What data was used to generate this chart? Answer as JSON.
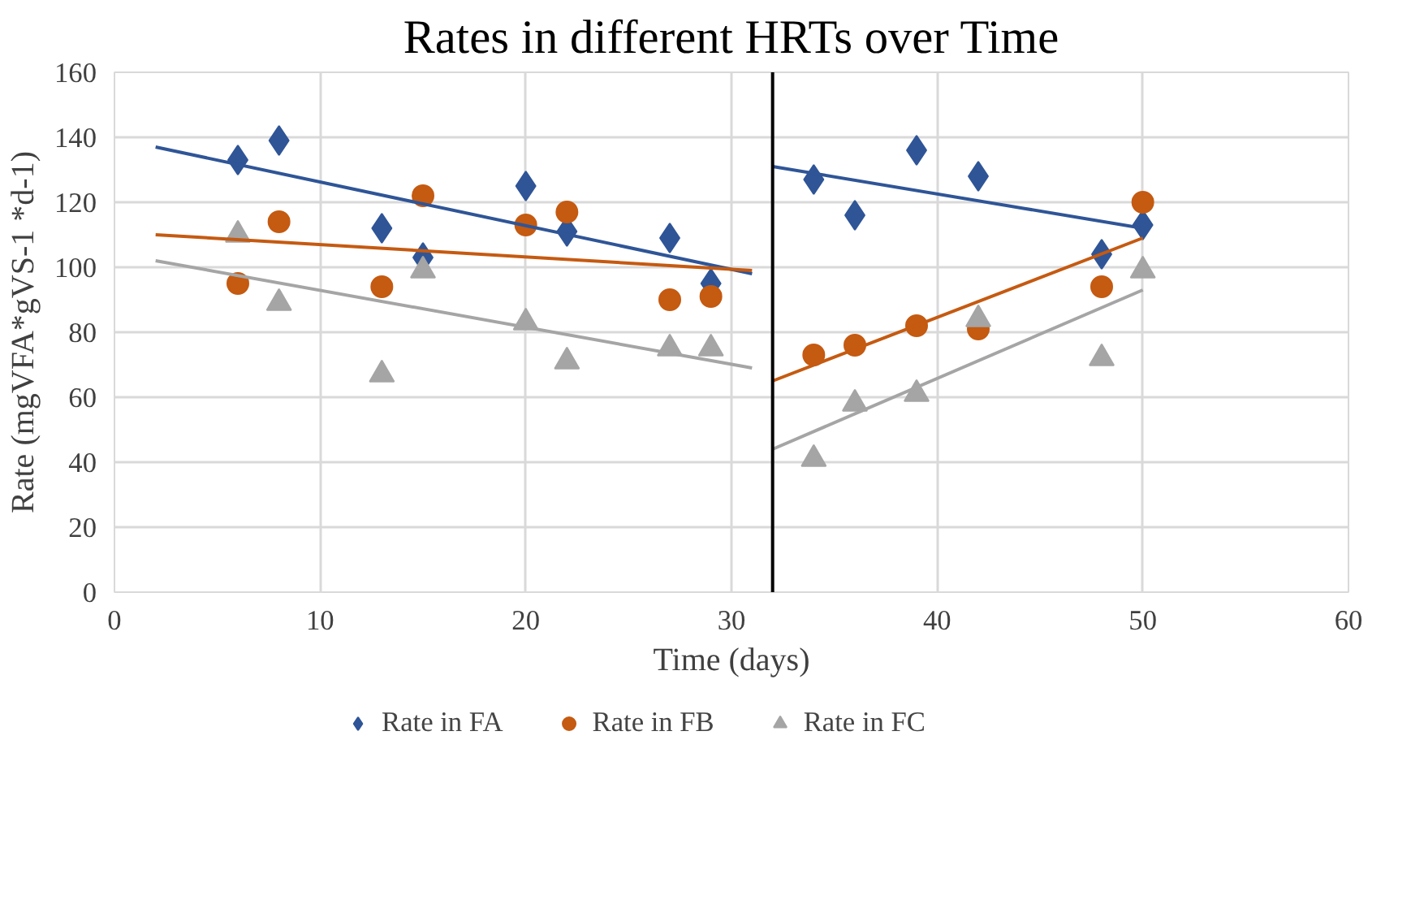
{
  "chart_data": {
    "type": "scatter",
    "title": "Rates in different HRTs over Time",
    "xlabel": "Time (days)",
    "ylabel": "Rate (mgVFA*gVS-1 *d-1)",
    "xlim": [
      0,
      60
    ],
    "xticks": [
      0,
      10,
      20,
      30,
      40,
      50,
      60
    ],
    "ylim": [
      0,
      160
    ],
    "yticks": [
      0,
      20,
      40,
      60,
      80,
      100,
      120,
      140,
      160
    ],
    "grid": true,
    "legend": "bottom",
    "x": [
      6,
      8,
      13,
      15,
      20,
      22,
      27,
      29,
      34,
      36,
      39,
      42,
      48,
      50
    ],
    "series": [
      {
        "name": "Rate in FA",
        "color": "#2f5597",
        "marker": "diamond",
        "values": [
          133,
          139,
          112,
          103,
          125,
          111,
          109,
          95,
          127,
          116,
          136,
          128,
          104,
          113
        ]
      },
      {
        "name": "Rate in FB",
        "color": "#c55a11",
        "marker": "circle",
        "values": [
          95,
          114,
          94,
          122,
          113,
          117,
          90,
          91,
          73,
          76,
          82,
          81,
          94,
          120
        ]
      },
      {
        "name": "Rate in FC",
        "color": "#a5a5a5",
        "marker": "triangle",
        "values": [
          110,
          89,
          67,
          99,
          83,
          71,
          75,
          75,
          41,
          58,
          61,
          84,
          72,
          99
        ]
      },
      {
        "type": "line",
        "color": "#2f5597",
        "x": [
          2,
          31
        ],
        "values": [
          137,
          98
        ]
      },
      {
        "type": "line",
        "color": "#c55a11",
        "x": [
          2,
          31
        ],
        "values": [
          110,
          99
        ]
      },
      {
        "type": "line",
        "color": "#a5a5a5",
        "x": [
          2,
          31
        ],
        "values": [
          102,
          69
        ]
      },
      {
        "type": "line",
        "color": "#2f5597",
        "x": [
          32,
          50
        ],
        "values": [
          131,
          112
        ]
      },
      {
        "type": "line",
        "color": "#c55a11",
        "x": [
          32,
          50
        ],
        "values": [
          65,
          109
        ]
      },
      {
        "type": "line",
        "color": "#a5a5a5",
        "x": [
          32,
          50
        ],
        "values": [
          44,
          93
        ]
      }
    ],
    "ref_lines": [
      {
        "axis": "x",
        "value": 32,
        "color": "#000000"
      }
    ]
  }
}
